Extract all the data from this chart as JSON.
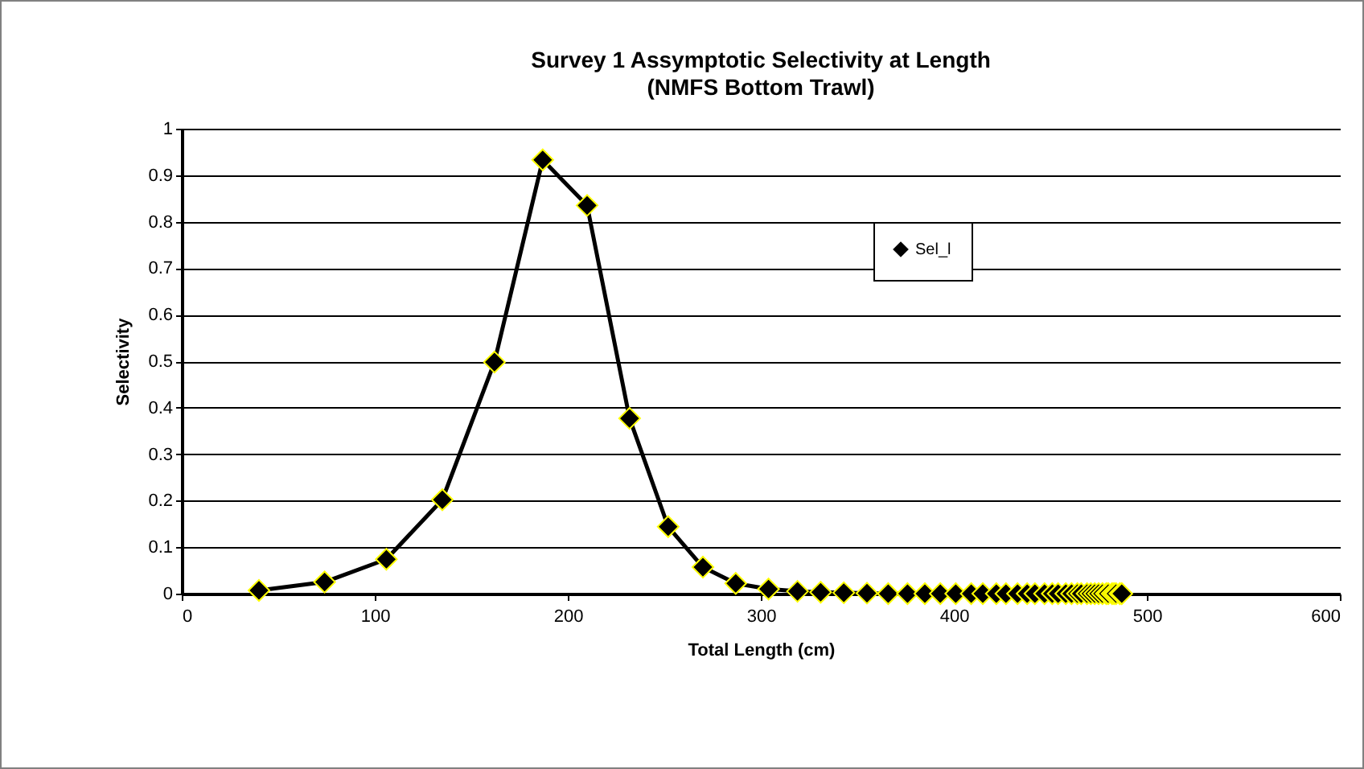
{
  "chart_data": {
    "type": "line",
    "title": [
      "Survey 1 Assymptotic Selectivity at Length",
      "(NMFS Bottom Trawl)"
    ],
    "xlabel": "Total Length (cm)",
    "ylabel": "Selectivity",
    "x": [
      40,
      74,
      106,
      135,
      162,
      187,
      210,
      232,
      252,
      270,
      287,
      304,
      319,
      331,
      343,
      355,
      366,
      376,
      385,
      393,
      401,
      409,
      415,
      422,
      427,
      433,
      438,
      442,
      447,
      451,
      454,
      458,
      461,
      464,
      466,
      469,
      471,
      473,
      475,
      477,
      479,
      480,
      482,
      483,
      484,
      486,
      487
    ],
    "series": [
      {
        "name": "Sel_l",
        "color": "#000000",
        "values": [
          0.007,
          0.025,
          0.074,
          0.202,
          0.498,
          0.933,
          0.835,
          0.377,
          0.144,
          0.057,
          0.022,
          0.01,
          0.005,
          0.003,
          0.002,
          0.001,
          0,
          0,
          0,
          0,
          0,
          0,
          0,
          0,
          0,
          0,
          0,
          0,
          0,
          0,
          0,
          0,
          0,
          0,
          0,
          0,
          0,
          0,
          0,
          0,
          0,
          0,
          0,
          0,
          0,
          0,
          0
        ]
      }
    ],
    "xlim": [
      0,
      600
    ],
    "xticks": [
      0,
      100,
      200,
      300,
      400,
      500,
      600
    ],
    "ylim": [
      0,
      1
    ],
    "yticks": [
      0,
      0.1,
      0.2,
      0.3,
      0.4,
      0.5,
      0.6,
      0.7,
      0.8,
      0.9,
      1
    ],
    "grid": "y",
    "legend": "top right",
    "marker": "diamond",
    "line_style": "solid"
  }
}
